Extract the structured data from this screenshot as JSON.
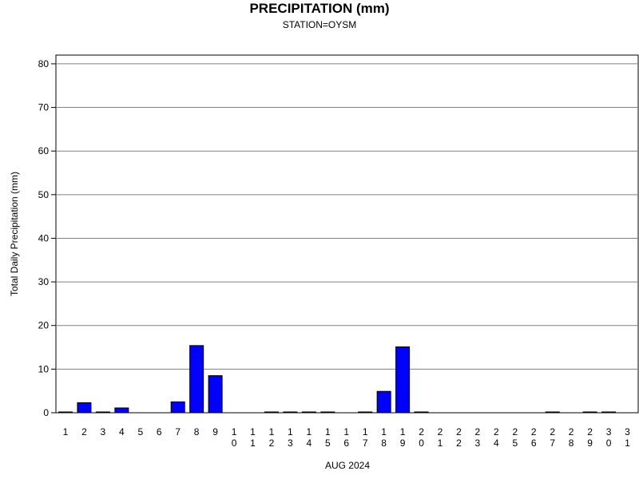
{
  "chart_data": {
    "type": "bar",
    "title": "PRECIPITATION (mm)",
    "subtitle": "STATION=OYSM",
    "xlabel": "AUG 2024",
    "ylabel": "Total Daily Precipitation (mm)",
    "ylim": [
      0,
      82
    ],
    "yticks": [
      0,
      10,
      20,
      30,
      40,
      50,
      60,
      70,
      80
    ],
    "grid": true,
    "bar_color": "#0000ff",
    "categories": [
      "1",
      "2",
      "3",
      "4",
      "5",
      "6",
      "7",
      "8",
      "9",
      "10",
      "11",
      "12",
      "13",
      "14",
      "15",
      "16",
      "17",
      "18",
      "19",
      "20",
      "21",
      "22",
      "23",
      "24",
      "25",
      "26",
      "27",
      "28",
      "29",
      "30",
      "31"
    ],
    "values": [
      0.1,
      2.3,
      0.1,
      1.1,
      0,
      0,
      2.5,
      15.4,
      8.5,
      0,
      0,
      0.1,
      0.1,
      0.1,
      0.1,
      0,
      0.1,
      4.9,
      15.1,
      0.1,
      0,
      0,
      0,
      0,
      0,
      0,
      0.1,
      0,
      0.1,
      0.1,
      0
    ]
  }
}
